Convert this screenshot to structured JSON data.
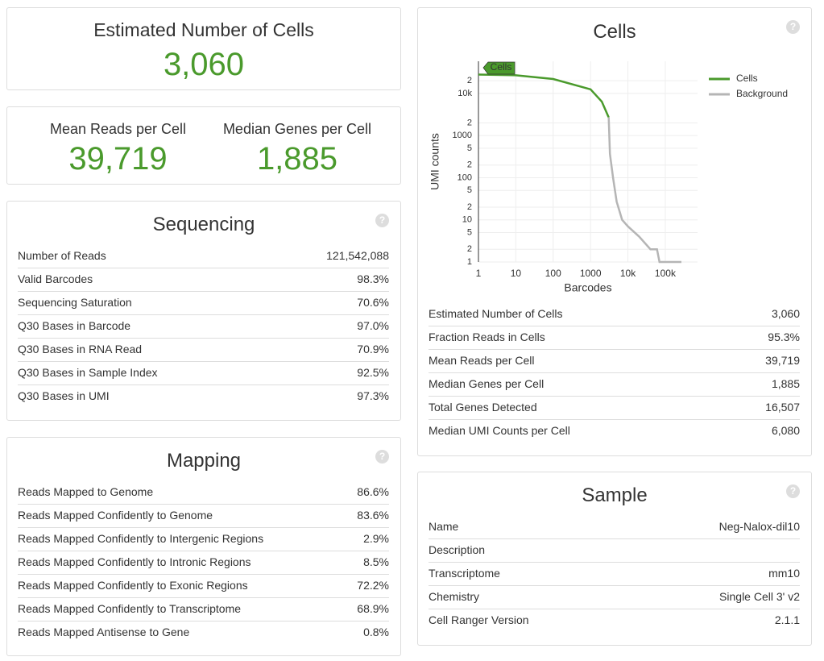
{
  "help_icon": "?",
  "estimated_cells": {
    "label": "Estimated Number of Cells",
    "value": "3,060"
  },
  "mean_reads": {
    "label": "Mean Reads per Cell",
    "value": "39,719"
  },
  "median_genes": {
    "label": "Median Genes per Cell",
    "value": "1,885"
  },
  "sequencing": {
    "title": "Sequencing",
    "rows": [
      {
        "label": "Number of Reads",
        "value": "121,542,088"
      },
      {
        "label": "Valid Barcodes",
        "value": "98.3%"
      },
      {
        "label": "Sequencing Saturation",
        "value": "70.6%"
      },
      {
        "label": "Q30 Bases in Barcode",
        "value": "97.0%"
      },
      {
        "label": "Q30 Bases in RNA Read",
        "value": "70.9%"
      },
      {
        "label": "Q30 Bases in Sample Index",
        "value": "92.5%"
      },
      {
        "label": "Q30 Bases in UMI",
        "value": "97.3%"
      }
    ]
  },
  "mapping": {
    "title": "Mapping",
    "rows": [
      {
        "label": "Reads Mapped to Genome",
        "value": "86.6%"
      },
      {
        "label": "Reads Mapped Confidently to Genome",
        "value": "83.6%"
      },
      {
        "label": "Reads Mapped Confidently to Intergenic Regions",
        "value": "2.9%"
      },
      {
        "label": "Reads Mapped Confidently to Intronic Regions",
        "value": "8.5%"
      },
      {
        "label": "Reads Mapped Confidently to Exonic Regions",
        "value": "72.2%"
      },
      {
        "label": "Reads Mapped Confidently to Transcriptome",
        "value": "68.9%"
      },
      {
        "label": "Reads Mapped Antisense to Gene",
        "value": "0.8%"
      }
    ]
  },
  "cells": {
    "rows": [
      {
        "label": "Estimated Number of Cells",
        "value": "3,060"
      },
      {
        "label": "Fraction Reads in Cells",
        "value": "95.3%"
      },
      {
        "label": "Mean Reads per Cell",
        "value": "39,719"
      },
      {
        "label": "Median Genes per Cell",
        "value": "1,885"
      },
      {
        "label": "Total Genes Detected",
        "value": "16,507"
      },
      {
        "label": "Median UMI Counts per Cell",
        "value": "6,080"
      }
    ]
  },
  "sample": {
    "title": "Sample",
    "rows": [
      {
        "label": "Name",
        "value": "Neg-Nalox-dil10"
      },
      {
        "label": "Description"
      },
      {
        "label": "Transcriptome",
        "value": "mm10"
      },
      {
        "label": "Chemistry",
        "value": "Single Cell 3' v2"
      },
      {
        "label": "Cell Ranger Version",
        "value": "2.1.1"
      }
    ]
  },
  "chart_data": {
    "type": "line",
    "title": "Cells",
    "annotation": "Cells",
    "xlabel": "Barcodes",
    "ylabel": "UMI counts",
    "xscale": "log",
    "yscale": "log",
    "grid": true,
    "legend": "top-right",
    "xlim": [
      1,
      730000
    ],
    "ylim": [
      1,
      58000
    ],
    "xticks": [
      1,
      10,
      100,
      1000,
      {
        "value": 10000,
        "label": "10k"
      },
      {
        "value": 100000,
        "label": "100k"
      }
    ],
    "yticks": [
      1,
      2,
      5,
      10,
      {
        "value": 20,
        "label": "2"
      },
      {
        "value": 50,
        "label": "5"
      },
      100,
      {
        "value": 200,
        "label": "2"
      },
      {
        "value": 500,
        "label": "5"
      },
      1000,
      {
        "value": 2000,
        "label": "2"
      },
      {
        "value": 10000,
        "label": "10k"
      },
      {
        "value": 20000,
        "label": "2"
      }
    ],
    "series": [
      {
        "name": "Cells",
        "color": "#4a9a2c",
        "x": [
          1,
          10,
          100,
          1000,
          2000,
          3060
        ],
        "values": [
          28000,
          27000,
          22000,
          12500,
          6400,
          2700
        ]
      },
      {
        "name": "Background",
        "color": "#b5b5b5",
        "x": [
          3060,
          3300,
          4000,
          5000,
          7000,
          10000,
          20000,
          40000,
          60000,
          70000,
          270000
        ],
        "values": [
          2700,
          370,
          100,
          27,
          10,
          7,
          4,
          2,
          2,
          1,
          1
        ]
      }
    ]
  }
}
